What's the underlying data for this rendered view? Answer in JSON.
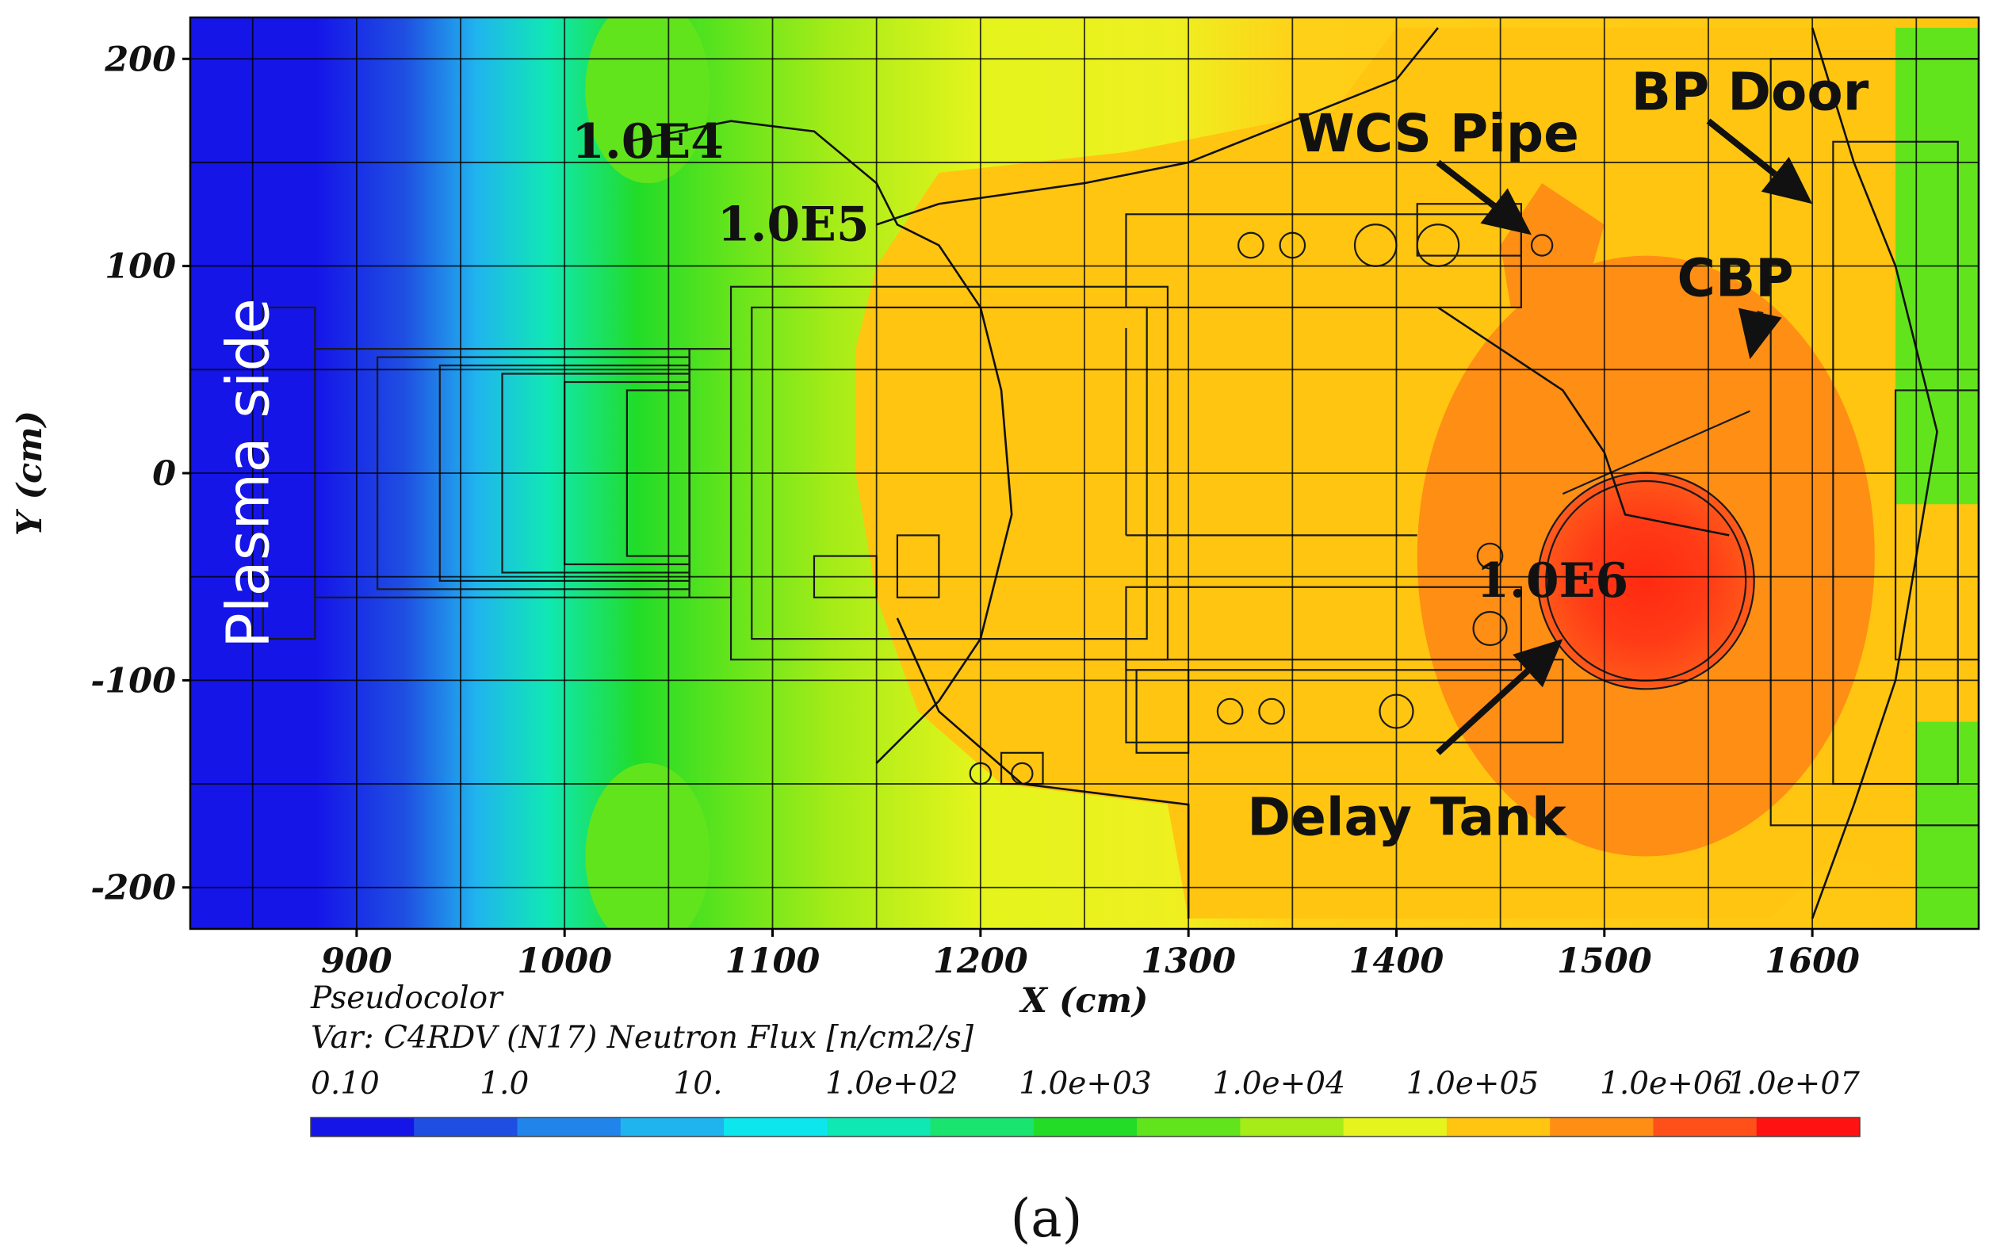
{
  "chart_data": {
    "type": "heatmap",
    "title": "",
    "plot_type_label": "Pseudocolor",
    "variable_label": "Var: C4RDV (N17) Neutron Flux [n/cm2/s]",
    "xlabel": "X (cm)",
    "ylabel": "Y (cm)",
    "xlim": [
      820,
      1680
    ],
    "ylim": [
      -220,
      220
    ],
    "x_ticks": [
      {
        "value": 900,
        "label": "900"
      },
      {
        "value": 1000,
        "label": "1000"
      },
      {
        "value": 1100,
        "label": "1100"
      },
      {
        "value": 1200,
        "label": "1200"
      },
      {
        "value": 1300,
        "label": "1300"
      },
      {
        "value": 1400,
        "label": "1400"
      },
      {
        "value": 1500,
        "label": "1500"
      },
      {
        "value": 1600,
        "label": "1600"
      }
    ],
    "y_ticks": [
      {
        "value": 200,
        "label": "200"
      },
      {
        "value": 100,
        "label": "100"
      },
      {
        "value": 0,
        "label": "0"
      },
      {
        "value": -100,
        "label": "-100"
      },
      {
        "value": -200,
        "label": "-200"
      }
    ],
    "grid": true,
    "flux_regions_log10": [
      {
        "name": "plasma-side-low",
        "x": [
          820,
          880
        ],
        "log10_flux": -1
      },
      {
        "name": "blanket-gradient",
        "x": [
          880,
          1060
        ],
        "log10_flux_range": [
          -1,
          3
        ]
      },
      {
        "name": "port-mid",
        "x": [
          1060,
          1290
        ],
        "log10_flux_range": [
          4,
          5
        ]
      },
      {
        "name": "port-rear",
        "x": [
          1290,
          1680
        ],
        "log10_flux": 5
      },
      {
        "name": "wcs-pipe-hotspot",
        "center": [
          1470,
          110
        ],
        "log10_flux": 6
      },
      {
        "name": "delay-tank-hotspot",
        "center": [
          1520,
          -55
        ],
        "log10_flux_range": [
          6,
          7
        ]
      }
    ],
    "contour_labels": [
      {
        "text": "1.0E4",
        "x": 1040,
        "y": 160
      },
      {
        "text": "1.0E5",
        "x": 1110,
        "y": 120
      },
      {
        "text": "1.0E6",
        "x": 1475,
        "y": -52
      }
    ],
    "annotations": [
      {
        "text": "WCS Pipe",
        "x": 1420,
        "y": 165
      },
      {
        "text": "BP Door",
        "x": 1570,
        "y": 185
      },
      {
        "text": "CBP",
        "x": 1563,
        "y": 95
      },
      {
        "text": "Delay Tank",
        "x": 1405,
        "y": -165
      }
    ],
    "side_label": {
      "text": "Plasma side"
    },
    "colorbar": {
      "scale": "log",
      "tick_labels": [
        "0.10",
        "1.0",
        "10.",
        "1.0e+02",
        "1.0e+03",
        "1.0e+04",
        "1.0e+05",
        "1.0e+06",
        "1.0e+07"
      ],
      "colors": [
        "#1515e8",
        "#1f4fe2",
        "#2184ea",
        "#20b4ee",
        "#0de6ec",
        "#10e8b4",
        "#1ae470",
        "#22dc28",
        "#62e41c",
        "#a6ec18",
        "#e4f41c",
        "#ffc510",
        "#ff8e14",
        "#ff501a",
        "#ff1212"
      ]
    },
    "panel_label": "(a)"
  }
}
